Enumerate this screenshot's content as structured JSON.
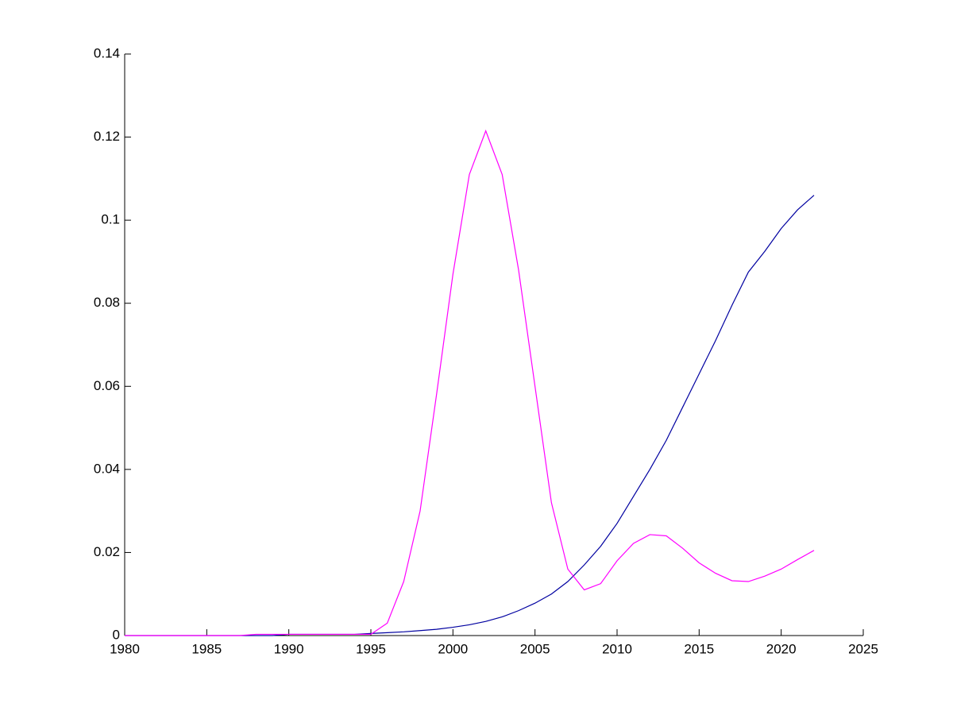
{
  "chart_data": {
    "type": "line",
    "x": [
      1980,
      1981,
      1982,
      1983,
      1984,
      1985,
      1986,
      1987,
      1988,
      1989,
      1990,
      1991,
      1992,
      1993,
      1994,
      1995,
      1996,
      1997,
      1998,
      1999,
      2000,
      2001,
      2002,
      2003,
      2004,
      2005,
      2006,
      2007,
      2008,
      2009,
      2010,
      2011,
      2012,
      2013,
      2014,
      2015,
      2016,
      2017,
      2018,
      2019,
      2020,
      2021,
      2022
    ],
    "series": [
      {
        "color": "#0000a0",
        "values": [
          0,
          0,
          0,
          0,
          0,
          0,
          0,
          0,
          0,
          0,
          0.0003,
          0.0003,
          0.0003,
          0.0003,
          0.0003,
          0.0005,
          0.0007,
          0.0009,
          0.0012,
          0.0015,
          0.002,
          0.0026,
          0.0034,
          0.0045,
          0.006,
          0.0078,
          0.01,
          0.013,
          0.017,
          0.0215,
          0.027,
          0.0335,
          0.04,
          0.047,
          0.055,
          0.063,
          0.071,
          0.0795,
          0.0875,
          0.0925,
          0.098,
          0.1025,
          0.106
        ]
      },
      {
        "color": "#ff00ff",
        "values": [
          0,
          0,
          0,
          0,
          0,
          0,
          0,
          0,
          0.0003,
          0.0003,
          0.0003,
          0.0003,
          0.0003,
          0.0003,
          0.0003,
          0.0003,
          0.003,
          0.013,
          0.03,
          0.058,
          0.087,
          0.111,
          0.1215,
          0.111,
          0.088,
          0.06,
          0.032,
          0.016,
          0.011,
          0.0125,
          0.018,
          0.0222,
          0.0243,
          0.024,
          0.021,
          0.0175,
          0.015,
          0.0132,
          0.013,
          0.0143,
          0.016,
          0.0183,
          0.0205
        ]
      }
    ],
    "xlim": [
      1980,
      2025
    ],
    "xticks": [
      1980,
      1985,
      1990,
      1995,
      2000,
      2005,
      2010,
      2015,
      2020,
      2025
    ],
    "ylim": [
      0,
      0.14
    ],
    "yticks": [
      0,
      0.02,
      0.04,
      0.06,
      0.08,
      0.1,
      0.12,
      0.14
    ]
  }
}
